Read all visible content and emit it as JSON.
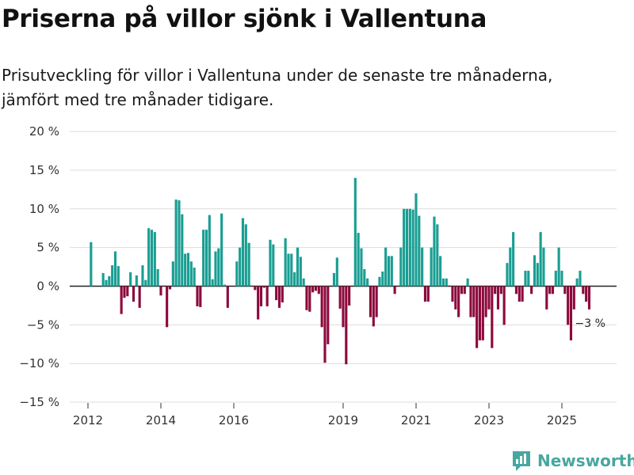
{
  "title": "Priserna på villor sjönk i Vallentuna",
  "subtitle_line1": "Prisutveckling för villor i Vallentuna under de senaste tre månaderna,",
  "subtitle_line2": "jämfört med tre månader tidigare.",
  "brand": "Newsworthy",
  "colors": {
    "positive": "#1a9e93",
    "negative": "#8c0a3c",
    "grid": "#dcdcdc",
    "brand": "#47a7a0"
  },
  "chart_data": {
    "type": "bar",
    "ylabel": "",
    "ylim": [
      -15,
      20
    ],
    "yticks": [
      -15,
      -10,
      -5,
      0,
      5,
      10,
      15,
      20
    ],
    "ytick_labels": [
      "−15 %",
      "−10 %",
      "−5 %",
      "0 %",
      "5 %",
      "10 %",
      "15 %",
      "20 %"
    ],
    "xticks": [
      {
        "label": "2012",
        "x": 2012.0
      },
      {
        "label": "2014",
        "x": 2014.0
      },
      {
        "label": "2016",
        "x": 2016.0
      },
      {
        "label": "2019",
        "x": 2019.0
      },
      {
        "label": "2021",
        "x": 2021.0
      },
      {
        "label": "2023",
        "x": 2023.0
      },
      {
        "label": "2025",
        "x": 2025.0
      }
    ],
    "x_start": 2011.5,
    "x_end": 2026.5,
    "first_bar_x": 2012.083,
    "bar_step": 0.0833333,
    "values": [
      5.7,
      0,
      0,
      0,
      1.7,
      0.8,
      1.3,
      2.7,
      4.5,
      2.6,
      -3.6,
      -1.5,
      -1.3,
      1.8,
      -2.0,
      1.4,
      -2.8,
      2.7,
      0.8,
      7.5,
      7.3,
      7.0,
      2.2,
      -1.2,
      0,
      -5.3,
      -0.4,
      3.2,
      11.2,
      11.1,
      9.3,
      4.2,
      4.3,
      3.2,
      2.4,
      -2.6,
      -2.7,
      7.3,
      7.3,
      9.2,
      0.9,
      4.5,
      4.9,
      9.4,
      0.2,
      -2.8,
      0,
      0,
      3.2,
      5.0,
      8.8,
      8.0,
      5.6,
      0,
      -0.5,
      -4.3,
      -2.6,
      -0.2,
      -2.6,
      6.0,
      5.4,
      -1.8,
      -2.8,
      -2.1,
      6.2,
      4.2,
      4.2,
      1.8,
      5.0,
      3.8,
      1.0,
      -3.1,
      -3.3,
      -0.8,
      -0.6,
      -1.0,
      -5.3,
      -9.9,
      -7.5,
      0,
      1.7,
      3.7,
      -2.9,
      -5.3,
      -10.1,
      -2.5,
      0,
      14.0,
      6.9,
      4.9,
      2.2,
      1.0,
      -4.0,
      -5.2,
      -4.0,
      1.2,
      1.9,
      5.0,
      3.9,
      3.9,
      -1.0,
      0,
      5.0,
      10.0,
      10.0,
      10.0,
      9.9,
      12.0,
      9.1,
      5.0,
      -2.0,
      -2.0,
      5.0,
      9.0,
      8.0,
      3.9,
      1.0,
      1.0,
      0,
      -2.0,
      -3.0,
      -4.0,
      -1.0,
      -1.0,
      1.0,
      -4.0,
      -4.0,
      -8.0,
      -7.0,
      -7.0,
      -4.0,
      -3.0,
      -8.0,
      -1.0,
      -3.0,
      -1.0,
      -5.0,
      3.0,
      5.0,
      7.0,
      -1.0,
      -2.0,
      -2.0,
      2.0,
      2.0,
      -1.0,
      4.0,
      3.0,
      7.0,
      5.0,
      -3.0,
      -1.0,
      -1.0,
      2.0,
      5.0,
      2.0,
      -1.0,
      -5.0,
      -7.0,
      -3.0,
      1.0,
      2.0,
      -1.0,
      -2.0,
      -3.0
    ],
    "last_value_label": "−3 %"
  }
}
